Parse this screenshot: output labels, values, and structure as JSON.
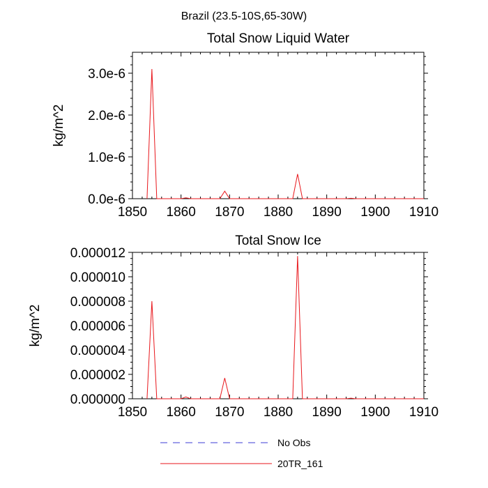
{
  "header": {
    "title": "Brazil (23.5-10S,65-30W)"
  },
  "chart_data": [
    {
      "type": "line",
      "title": "Total Snow Liquid Water",
      "xlabel": "",
      "ylabel": "kg/m^2",
      "xlim": [
        1850,
        1910
      ],
      "ylim": [
        0,
        3.5e-06
      ],
      "x_ticks": [
        1850,
        1860,
        1870,
        1880,
        1890,
        1900,
        1910
      ],
      "x_tick_labels": [
        "1850",
        "1860",
        "1870",
        "1880",
        "1890",
        "1900",
        "1910"
      ],
      "y_ticks": [
        0,
        1e-06,
        2e-06,
        3e-06
      ],
      "y_tick_labels": [
        "0.0e-6",
        "1.0e-6",
        "2.0e-6",
        "3.0e-6"
      ],
      "series": [
        {
          "name": "20TR_161",
          "color": "#e8161b",
          "x": [
            1853,
            1854,
            1855,
            1860,
            1861,
            1862,
            1868,
            1869,
            1870,
            1871,
            1883,
            1884,
            1885,
            1894,
            1895,
            1896,
            1910
          ],
          "y": [
            0,
            3.1e-06,
            0,
            0,
            2e-08,
            0,
            0,
            1.8e-07,
            0,
            0,
            0,
            5.9e-07,
            0,
            0,
            1e-08,
            0,
            0
          ]
        }
      ]
    },
    {
      "type": "line",
      "title": "Total Snow Ice",
      "xlabel": "",
      "ylabel": "kg/m^2",
      "xlim": [
        1850,
        1910
      ],
      "ylim": [
        0,
        1.2e-05
      ],
      "x_ticks": [
        1850,
        1860,
        1870,
        1880,
        1890,
        1900,
        1910
      ],
      "x_tick_labels": [
        "1850",
        "1860",
        "1870",
        "1880",
        "1890",
        "1900",
        "1910"
      ],
      "y_ticks": [
        0,
        2e-06,
        4e-06,
        6e-06,
        8e-06,
        1e-05,
        1.2e-05
      ],
      "y_tick_labels": [
        "0.000000",
        "0.000002",
        "0.000004",
        "0.000006",
        "0.000008",
        "0.000010",
        "0.000012"
      ],
      "series": [
        {
          "name": "20TR_161",
          "color": "#e8161b",
          "x": [
            1853,
            1854,
            1855,
            1860,
            1861,
            1862,
            1868,
            1869,
            1870,
            1871,
            1883,
            1884,
            1885,
            1894,
            1895,
            1896,
            1910
          ],
          "y": [
            0,
            8e-06,
            0,
            0,
            1.5e-07,
            0,
            0,
            1.7e-06,
            0,
            0,
            0,
            1.17e-05,
            0,
            0,
            5e-08,
            0,
            0
          ]
        }
      ]
    }
  ],
  "legend": [
    {
      "label": "No Obs",
      "color": "#3b3bd6",
      "style": "dashed"
    },
    {
      "label": "20TR_161",
      "color": "#e8161b",
      "style": "solid"
    }
  ]
}
